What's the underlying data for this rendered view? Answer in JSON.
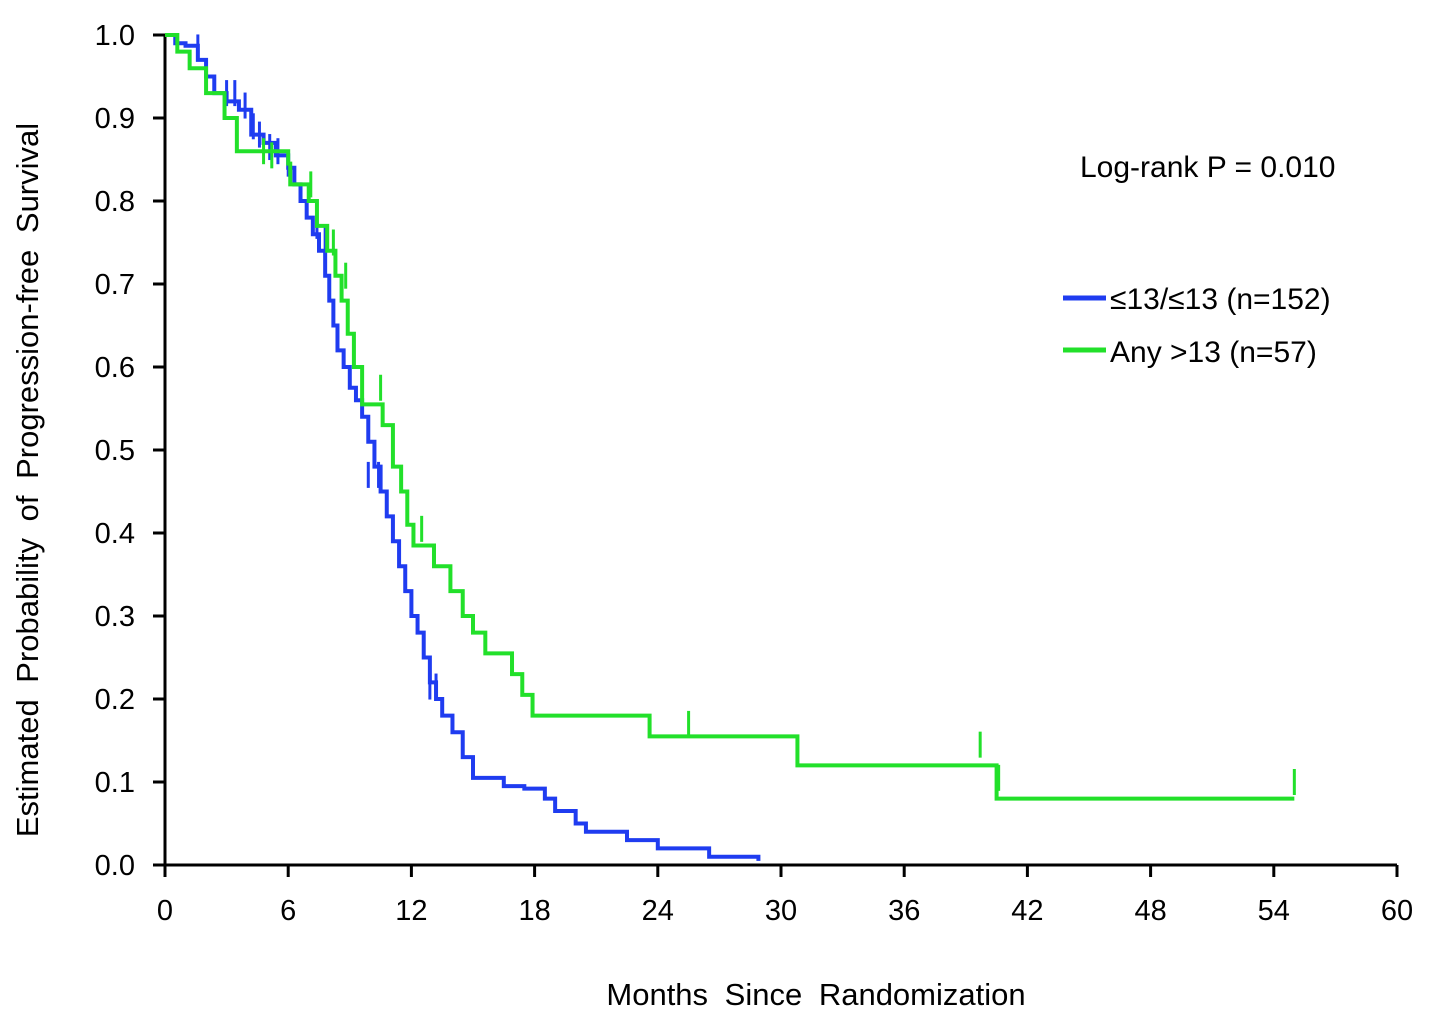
{
  "chart_data": {
    "type": "line",
    "style": "kaplan-meier step curve",
    "xlabel": "Months Since Randomization",
    "ylabel": "Estimated Probability of Progression-free Survival",
    "xlim": [
      0,
      60
    ],
    "ylim": [
      0,
      1.0
    ],
    "x_ticks": [
      "0",
      "6",
      "12",
      "18",
      "24",
      "30",
      "36",
      "42",
      "48",
      "54",
      "60"
    ],
    "y_ticks": [
      "0.0",
      "0.1",
      "0.2",
      "0.3",
      "0.4",
      "0.5",
      "0.6",
      "0.7",
      "0.8",
      "0.9",
      "1.0"
    ],
    "grid": false,
    "legend_position": "right",
    "annotation": "Log-rank P = 0.010",
    "series": [
      {
        "name": "≤13/≤13 (n=152)",
        "color": "#1f3cf0",
        "points": [
          [
            0,
            1.0
          ],
          [
            0.5,
            0.99
          ],
          [
            1.0,
            0.987
          ],
          [
            1.6,
            0.97
          ],
          [
            2.0,
            0.95
          ],
          [
            2.4,
            0.93
          ],
          [
            3.0,
            0.92
          ],
          [
            3.6,
            0.91
          ],
          [
            4.2,
            0.88
          ],
          [
            4.8,
            0.87
          ],
          [
            5.4,
            0.855
          ],
          [
            6.0,
            0.84
          ],
          [
            6.3,
            0.82
          ],
          [
            6.6,
            0.8
          ],
          [
            6.9,
            0.78
          ],
          [
            7.2,
            0.76
          ],
          [
            7.5,
            0.74
          ],
          [
            7.8,
            0.71
          ],
          [
            8.0,
            0.68
          ],
          [
            8.2,
            0.65
          ],
          [
            8.4,
            0.62
          ],
          [
            8.7,
            0.6
          ],
          [
            9.0,
            0.575
          ],
          [
            9.3,
            0.56
          ],
          [
            9.6,
            0.54
          ],
          [
            9.9,
            0.51
          ],
          [
            10.2,
            0.48
          ],
          [
            10.5,
            0.45
          ],
          [
            10.8,
            0.42
          ],
          [
            11.1,
            0.39
          ],
          [
            11.4,
            0.36
          ],
          [
            11.7,
            0.33
          ],
          [
            12.0,
            0.3
          ],
          [
            12.3,
            0.28
          ],
          [
            12.6,
            0.25
          ],
          [
            12.9,
            0.22
          ],
          [
            13.2,
            0.2
          ],
          [
            13.5,
            0.18
          ],
          [
            14.0,
            0.16
          ],
          [
            14.5,
            0.13
          ],
          [
            15.0,
            0.105
          ],
          [
            16.5,
            0.095
          ],
          [
            17.5,
            0.092
          ],
          [
            18.5,
            0.08
          ],
          [
            19.0,
            0.065
          ],
          [
            20.0,
            0.05
          ],
          [
            20.5,
            0.04
          ],
          [
            22.5,
            0.03
          ],
          [
            24.0,
            0.02
          ],
          [
            26.5,
            0.01
          ],
          [
            28.9,
            0.005
          ]
        ],
        "censor_marks": [
          [
            1.6,
            0.985
          ],
          [
            3.0,
            0.93
          ],
          [
            3.4,
            0.93
          ],
          [
            3.9,
            0.915
          ],
          [
            4.3,
            0.89
          ],
          [
            4.6,
            0.88
          ],
          [
            5.1,
            0.865
          ],
          [
            5.5,
            0.86
          ],
          [
            6.0,
            0.845
          ],
          [
            7.4,
            0.77
          ],
          [
            7.8,
            0.755
          ],
          [
            9.9,
            0.47
          ],
          [
            10.4,
            0.47
          ],
          [
            12.9,
            0.215
          ],
          [
            13.2,
            0.215
          ]
        ]
      },
      {
        "name": "Any >13 (n=57)",
        "color": "#22e02a",
        "points": [
          [
            0,
            1.0
          ],
          [
            0.6,
            0.98
          ],
          [
            1.2,
            0.96
          ],
          [
            2.0,
            0.93
          ],
          [
            2.9,
            0.9
          ],
          [
            3.5,
            0.86
          ],
          [
            6.0,
            0.845
          ],
          [
            6.1,
            0.82
          ],
          [
            7.0,
            0.8
          ],
          [
            7.4,
            0.77
          ],
          [
            7.9,
            0.74
          ],
          [
            8.3,
            0.71
          ],
          [
            8.6,
            0.68
          ],
          [
            8.9,
            0.64
          ],
          [
            9.2,
            0.6
          ],
          [
            9.6,
            0.555
          ],
          [
            10.6,
            0.53
          ],
          [
            11.1,
            0.48
          ],
          [
            11.5,
            0.45
          ],
          [
            11.8,
            0.41
          ],
          [
            12.1,
            0.385
          ],
          [
            13.1,
            0.36
          ],
          [
            13.9,
            0.33
          ],
          [
            14.5,
            0.3
          ],
          [
            15.0,
            0.28
          ],
          [
            15.6,
            0.255
          ],
          [
            16.9,
            0.23
          ],
          [
            17.4,
            0.205
          ],
          [
            17.9,
            0.18
          ],
          [
            23.6,
            0.155
          ],
          [
            30.8,
            0.12
          ],
          [
            40.5,
            0.08
          ],
          [
            55.0,
            0.08
          ]
        ],
        "censor_marks": [
          [
            4.8,
            0.86
          ],
          [
            5.2,
            0.855
          ],
          [
            7.1,
            0.82
          ],
          [
            8.2,
            0.75
          ],
          [
            8.8,
            0.71
          ],
          [
            10.5,
            0.575
          ],
          [
            12.5,
            0.405
          ],
          [
            25.5,
            0.17
          ],
          [
            39.7,
            0.145
          ],
          [
            40.6,
            0.105
          ],
          [
            55.0,
            0.1
          ]
        ]
      }
    ]
  }
}
